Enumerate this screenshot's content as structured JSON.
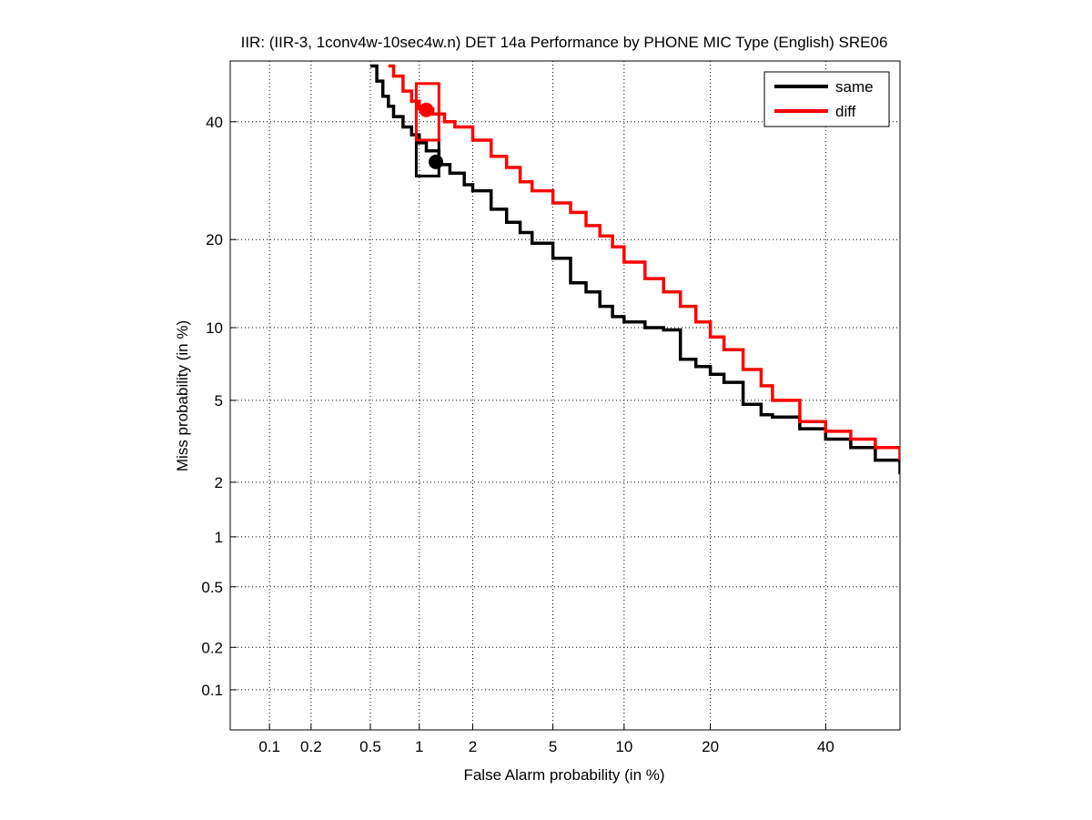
{
  "chart_data": {
    "type": "line",
    "scale": "normal-deviate (DET)",
    "title": "IIR: (IIR-3, 1conv4w-10sec4w.n) DET 14a Performance by PHONE MIC Type (English) SRE06",
    "xlabel": "False Alarm probability (in %)",
    "ylabel": "Miss probability (in %)",
    "xlim": [
      0.05,
      55
    ],
    "ylim": [
      0.05,
      52
    ],
    "x_ticks": [
      0.1,
      0.2,
      0.5,
      1,
      2,
      5,
      10,
      20,
      40
    ],
    "x_tick_labels": [
      "0.1",
      "0.2",
      "0.5",
      "1",
      "2",
      "5",
      "10",
      "20",
      "40"
    ],
    "y_ticks": [
      0.1,
      0.2,
      0.5,
      1,
      2,
      5,
      10,
      20,
      40
    ],
    "y_tick_labels": [
      "0.1",
      "0.2",
      "0.5",
      "1",
      "2",
      "5",
      "10",
      "20",
      "40"
    ],
    "grid": true,
    "legend_position": "top-right",
    "series": [
      {
        "name": "same",
        "color": "#000000",
        "x": [
          0.5,
          0.55,
          0.6,
          0.65,
          0.7,
          0.8,
          0.9,
          1.0,
          1.1,
          1.3,
          1.5,
          1.8,
          2.0,
          2.5,
          3.0,
          3.5,
          4.0,
          5.0,
          6.0,
          7.0,
          8.0,
          9.0,
          10.0,
          12.0,
          14.0,
          16.0,
          18.0,
          20.0,
          22.0,
          25.0,
          28.0,
          30.0,
          35.0,
          40.0,
          45.0,
          50.0,
          55.0
        ],
        "y": [
          51,
          48,
          45,
          43,
          41,
          39,
          37.5,
          36,
          34.5,
          32,
          30.5,
          28.5,
          27.5,
          24.5,
          22.5,
          21,
          19.5,
          17.5,
          14.5,
          13.5,
          12,
          11,
          10.5,
          10,
          9.8,
          7.5,
          7,
          6.5,
          6,
          4.8,
          4.3,
          4.2,
          3.7,
          3.3,
          3.0,
          2.6,
          2.2
        ]
      },
      {
        "name": "diff",
        "color": "#ff0000",
        "x": [
          0.65,
          0.7,
          0.8,
          0.9,
          1.0,
          1.2,
          1.4,
          1.6,
          2.0,
          2.5,
          3.0,
          3.5,
          4.0,
          5.0,
          6.0,
          7.0,
          8.0,
          9.0,
          10.0,
          12.0,
          14.0,
          16.0,
          18.0,
          20.0,
          22.0,
          25.0,
          28.0,
          30.0,
          35.0,
          40.0,
          45.0,
          50.0,
          55.0
        ],
        "y": [
          51,
          49,
          46,
          44,
          42.5,
          41.5,
          40,
          39,
          36.5,
          33.5,
          31.5,
          29,
          27.5,
          25.5,
          24,
          22,
          20.5,
          19,
          17,
          15,
          13.5,
          12,
          10.5,
          9.2,
          8.2,
          6.8,
          5.8,
          5.0,
          4.0,
          3.6,
          3.3,
          3.0,
          2.6
        ]
      }
    ],
    "operating_points": [
      {
        "series": "same",
        "kind": "min DCF",
        "x": 1.25,
        "y": 32.5
      },
      {
        "series": "diff",
        "kind": "min DCF",
        "x": 1.1,
        "y": 42.3
      }
    ],
    "confidence_boxes": [
      {
        "series": "same",
        "x_range": [
          0.96,
          1.3
        ],
        "y_range": [
          30.0,
          36.5
        ]
      },
      {
        "series": "diff",
        "x_range": [
          0.96,
          1.3
        ],
        "y_range": [
          36.5,
          47.5
        ]
      }
    ]
  }
}
